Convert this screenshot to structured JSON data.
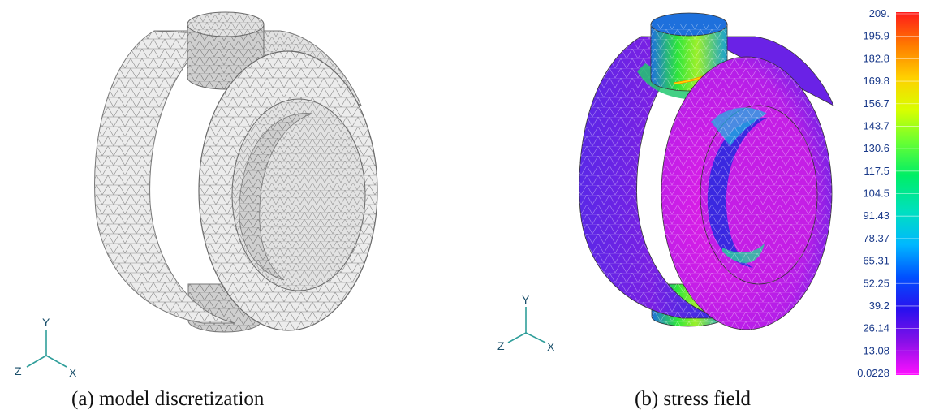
{
  "captions": {
    "a": "(a) model discretization",
    "b": "(b) stress field"
  },
  "axes": {
    "y": "Y",
    "z": "Z",
    "x": "X"
  },
  "colorbar": {
    "labels": [
      "209.",
      "195.9",
      "182.8",
      "169.8",
      "156.7",
      "143.7",
      "130.6",
      "117.5",
      "104.5",
      "91.43",
      "78.37",
      "65.31",
      "52.25",
      "39.2",
      "26.14",
      "13.08",
      "0.0228"
    ],
    "gradient_colors": [
      "#ff1a1a",
      "#ff7a00",
      "#ffd000",
      "#d8ff00",
      "#66ff33",
      "#00ee66",
      "#00e0c0",
      "#00b8ff",
      "#0050ff",
      "#2a10ee",
      "#8a10e8",
      "#ff10ff"
    ]
  },
  "colors": {
    "mesh_gray": "#e6e6e6",
    "stress_low": "#d21ee0",
    "stress_mid": "#2e2ae0",
    "stress_high": "#2ee63a",
    "axis_teal": "#2f9e9a"
  }
}
